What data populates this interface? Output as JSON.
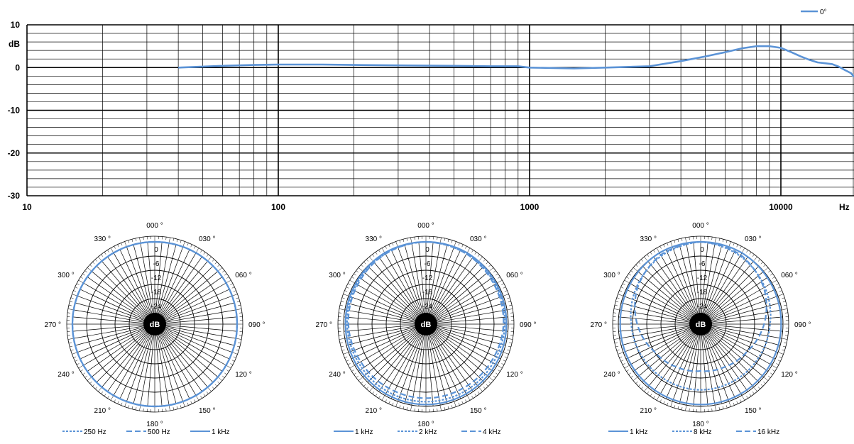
{
  "colors": {
    "series": "#5b93d6",
    "grid": "#000000",
    "background": "#ffffff"
  },
  "chart_data": [
    {
      "type": "line",
      "xscale": "log",
      "xlim": [
        10,
        20000
      ],
      "ylim": [
        -30,
        10
      ],
      "ylabel": "dB",
      "xlabel": "Hz",
      "ytick_labels": [
        "10",
        "0",
        "-10",
        "-20",
        "-30"
      ],
      "xtick_labels": [
        "10",
        "100",
        "1000",
        "10000"
      ],
      "grid": true,
      "legend_position": "top-right",
      "series": [
        {
          "name": "0°",
          "x": [
            40,
            60,
            80,
            100,
            150,
            200,
            300,
            500,
            700,
            900,
            1000,
            1500,
            2000,
            3000,
            4000,
            5000,
            6000,
            7000,
            8000,
            9000,
            10000,
            11000,
            12000,
            13000,
            14000,
            15000,
            16000,
            17000,
            18000,
            19000,
            20000
          ],
          "y": [
            0,
            0.4,
            0.6,
            0.7,
            0.7,
            0.6,
            0.5,
            0.4,
            0.3,
            0.3,
            0,
            -0.2,
            0,
            0.3,
            1.5,
            2.6,
            3.6,
            4.5,
            5.0,
            5.0,
            4.6,
            3.6,
            2.6,
            1.8,
            1.2,
            1.0,
            0.8,
            0.2,
            -0.6,
            -1.3,
            -2.2
          ]
        }
      ]
    },
    {
      "type": "polar",
      "center_label": "dB",
      "ring_labels": [
        "0",
        "-6",
        "-12",
        "-18",
        "-24"
      ],
      "angle_labels": [
        "000 °",
        "030 °",
        "060 °",
        "090 °",
        "120 °",
        "150 °",
        "180 °",
        "210 °",
        "240 °",
        "270 °",
        "300 °",
        "330 °"
      ],
      "series": [
        {
          "name": "250 Hz",
          "style": "dotted",
          "level_db": [
            0,
            0,
            0,
            0,
            0,
            0,
            0,
            0,
            0,
            0,
            0,
            0,
            0
          ]
        },
        {
          "name": "500 Hz",
          "style": "dashed",
          "level_db": [
            0,
            0,
            0,
            0,
            0,
            0,
            0,
            0,
            0,
            0,
            0,
            0,
            0
          ]
        },
        {
          "name": "1 kHz",
          "style": "solid",
          "level_db": [
            0,
            0,
            0,
            0,
            0,
            0,
            0,
            0,
            0,
            0,
            0,
            0,
            0
          ]
        }
      ]
    },
    {
      "type": "polar",
      "center_label": "dB",
      "ring_labels": [
        "0",
        "-6",
        "-12",
        "-18",
        "-24"
      ],
      "angle_labels": [
        "000 °",
        "030 °",
        "060 °",
        "090 °",
        "120 °",
        "150 °",
        "180 °",
        "210 °",
        "240 °",
        "270 °",
        "300 °",
        "330 °"
      ],
      "series": [
        {
          "name": "1 kHz",
          "style": "solid",
          "level_db": [
            0,
            0,
            -0.5,
            -0.8,
            -0.8,
            -0.8,
            -0.8,
            -0.8,
            -0.8,
            -0.8,
            -0.5,
            0,
            0
          ]
        },
        {
          "name": "2 kHz",
          "style": "dotted",
          "level_db": [
            0,
            -0.5,
            -1,
            -1.5,
            -2,
            -2,
            -2,
            -2,
            -2,
            -1.5,
            -1,
            -0.5,
            0
          ]
        },
        {
          "name": "4 kHz",
          "style": "dashed",
          "level_db": [
            0,
            -0.5,
            -1.5,
            -2,
            -3,
            -3.5,
            -3.5,
            -3.5,
            -3,
            -2,
            -1.5,
            -0.5,
            0
          ]
        }
      ]
    },
    {
      "type": "polar",
      "center_label": "dB",
      "ring_labels": [
        "0",
        "-6",
        "-12",
        "-18",
        "-24"
      ],
      "angle_labels": [
        "000 °",
        "030 °",
        "060 °",
        "090 °",
        "120 °",
        "150 °",
        "180 °",
        "210 °",
        "240 °",
        "270 °",
        "300 °",
        "330 °"
      ],
      "series": [
        {
          "name": "1 kHz",
          "style": "solid",
          "level_db": [
            0,
            0,
            -0.5,
            -0.8,
            -0.8,
            -0.8,
            -0.8,
            -0.8,
            -0.8,
            -0.8,
            -0.5,
            0,
            0
          ]
        },
        {
          "name": "8 kHz",
          "style": "dotted",
          "level_db": [
            0,
            -1.5,
            -3.5,
            -5.5,
            -6.5,
            -7,
            -7,
            -7,
            -6.5,
            -5.5,
            -3.5,
            -1.5,
            0
          ]
        },
        {
          "name": "16 kHz",
          "style": "dashed",
          "level_db": [
            0,
            -1,
            -4,
            -8,
            -12,
            -14,
            -15,
            -14,
            -12,
            -8,
            -4,
            -1,
            0
          ]
        }
      ]
    }
  ]
}
